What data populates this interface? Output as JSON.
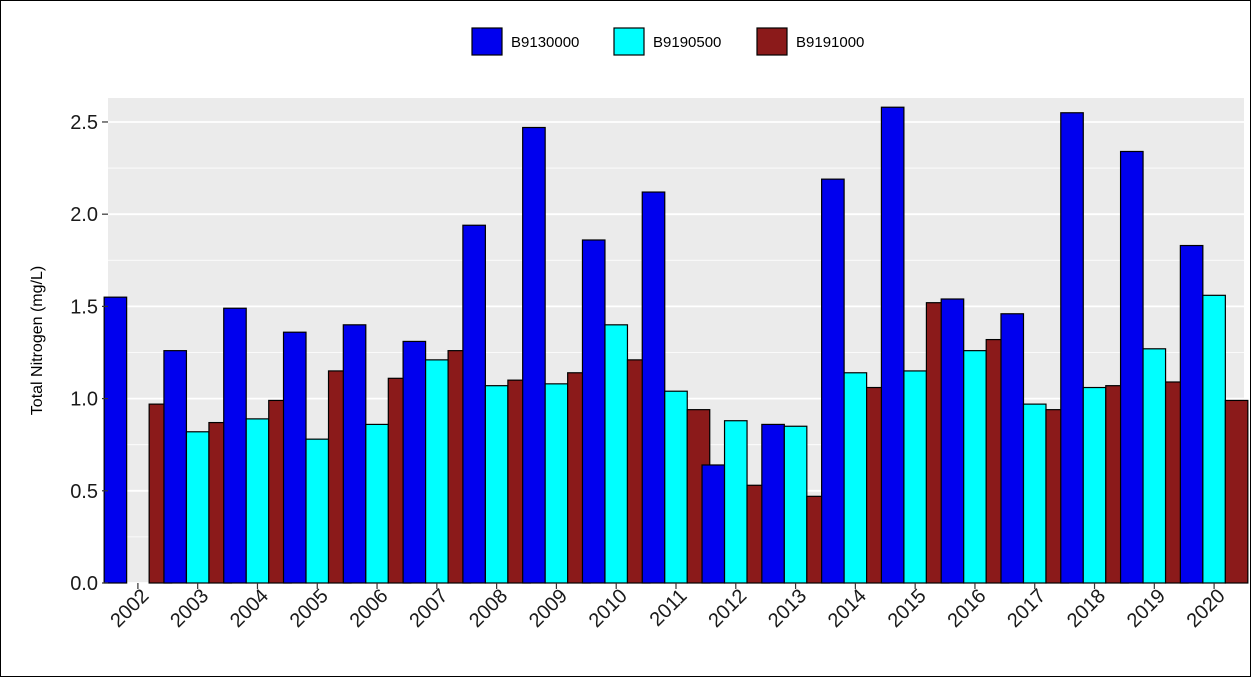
{
  "chart_data": {
    "type": "bar",
    "title": "",
    "xlabel": "",
    "ylabel": "Total Nitrogen (mg/L)",
    "ylim": [
      0,
      2.63
    ],
    "yticks": [
      "0.0",
      "0.5",
      "1.0",
      "1.5",
      "2.0",
      "2.5"
    ],
    "grid": true,
    "legend_position": "top",
    "categories": [
      "2002",
      "2003",
      "2004",
      "2005",
      "2006",
      "2007",
      "2008",
      "2009",
      "2010",
      "2011",
      "2012",
      "2013",
      "2014",
      "2015",
      "2016",
      "2017",
      "2018",
      "2019",
      "2020"
    ],
    "series": [
      {
        "name": "B9130000",
        "color": "#0000ee",
        "values": [
          1.55,
          1.26,
          1.49,
          1.36,
          1.4,
          1.31,
          1.94,
          2.47,
          1.86,
          2.12,
          0.64,
          0.86,
          2.19,
          2.58,
          1.54,
          1.46,
          2.55,
          2.34,
          1.83
        ]
      },
      {
        "name": "B9190500",
        "color": "#00ffff",
        "values": [
          null,
          0.82,
          0.89,
          0.78,
          0.86,
          1.21,
          1.07,
          1.08,
          1.4,
          1.04,
          0.88,
          0.85,
          1.14,
          1.15,
          1.26,
          0.97,
          1.06,
          1.27,
          1.56
        ]
      },
      {
        "name": "B9191000",
        "color": "#8b1a1a",
        "values": [
          0.97,
          0.87,
          0.99,
          1.15,
          1.11,
          1.26,
          1.1,
          1.14,
          1.21,
          0.94,
          0.53,
          0.47,
          1.06,
          1.52,
          1.32,
          0.94,
          1.07,
          1.09,
          0.99
        ]
      }
    ]
  }
}
